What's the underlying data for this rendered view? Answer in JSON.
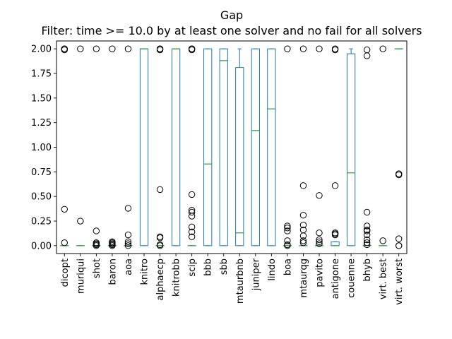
{
  "chart_data": {
    "type": "boxplot",
    "title": "Gap",
    "subtitle": "Filter: time >= 10.0 by at least one solver and no fail for all solvers",
    "xlabel": "",
    "ylabel": "",
    "ylim": [
      -0.08,
      2.08
    ],
    "yticks": [
      "0.00",
      "0.25",
      "0.50",
      "0.75",
      "1.00",
      "1.25",
      "1.50",
      "1.75",
      "2.00"
    ],
    "ytick_values": [
      0,
      0.25,
      0.5,
      0.75,
      1.0,
      1.25,
      1.5,
      1.75,
      2.0
    ],
    "grid": false,
    "colors": {
      "box": "#1f77b4",
      "median": "#2ca02c",
      "flier": "#000000",
      "axis": "#000000"
    },
    "categories": [
      "dicopt",
      "muriqui",
      "shot",
      "baron",
      "aoa",
      "knitro",
      "alphaecp",
      "knitrobb",
      "scip",
      "bbb",
      "sbb",
      "mtaurbnb",
      "juniper",
      "lindo",
      "boa",
      "mtaurqg",
      "pavito",
      "antigone",
      "couenne",
      "bhyb",
      "virt. best",
      "virt. worst"
    ],
    "boxes": [
      {
        "q1": 0,
        "median": 0,
        "q3": 0,
        "whislo": 0,
        "whishi": 0,
        "fliers": [
          0.03,
          0.37,
          1.99,
          2.0,
          2.0
        ]
      },
      {
        "q1": 0,
        "median": 0,
        "q3": 0,
        "whislo": 0,
        "whishi": 0,
        "fliers": [
          0.25,
          2.0
        ]
      },
      {
        "q1": 0,
        "median": 0,
        "q3": 0,
        "whislo": 0,
        "whishi": 0,
        "fliers": [
          0.0,
          0.01,
          0.02,
          0.03,
          0.15,
          2.0
        ]
      },
      {
        "q1": 0,
        "median": 0,
        "q3": 0,
        "whislo": 0,
        "whishi": 0,
        "fliers": [
          0.0,
          0.01,
          0.02,
          0.03,
          0.04,
          2.0
        ]
      },
      {
        "q1": 0,
        "median": 0,
        "q3": 0,
        "whislo": 0,
        "whishi": 0,
        "fliers": [
          0.0,
          0.02,
          0.04,
          0.11,
          0.38,
          2.0
        ]
      },
      {
        "q1": 0,
        "median": 2.0,
        "q3": 2.0,
        "whislo": 0,
        "whishi": 2.0,
        "fliers": []
      },
      {
        "q1": 0,
        "median": 0,
        "q3": 0,
        "whislo": 0,
        "whishi": 0,
        "fliers": [
          0.0,
          0.01,
          0.08,
          0.09,
          0.57,
          1.99,
          2.0,
          2.0
        ]
      },
      {
        "q1": 0,
        "median": 2.0,
        "q3": 2.0,
        "whislo": 0,
        "whishi": 2.0,
        "fliers": []
      },
      {
        "q1": 0,
        "median": 0,
        "q3": 0,
        "whislo": 0,
        "whishi": 0,
        "fliers": [
          0.09,
          0.14,
          0.19,
          0.3,
          0.34,
          0.36,
          0.52,
          1.99,
          2.0,
          2.0
        ]
      },
      {
        "q1": 0,
        "median": 0.83,
        "q3": 2.0,
        "whislo": 0,
        "whishi": 2.0,
        "fliers": []
      },
      {
        "q1": 0,
        "median": 1.88,
        "q3": 2.0,
        "whislo": 0,
        "whishi": 2.0,
        "fliers": []
      },
      {
        "q1": 0,
        "median": 0.13,
        "q3": 1.81,
        "whislo": 0,
        "whishi": 2.0,
        "fliers": []
      },
      {
        "q1": 0,
        "median": 1.17,
        "q3": 2.0,
        "whislo": 0,
        "whishi": 2.0,
        "fliers": []
      },
      {
        "q1": 0,
        "median": 1.39,
        "q3": 2.0,
        "whislo": 0,
        "whishi": 2.0,
        "fliers": []
      },
      {
        "q1": 0,
        "median": 0,
        "q3": 0,
        "whislo": 0,
        "whishi": 0,
        "fliers": [
          0.0,
          0.01,
          0.05,
          0.15,
          0.18,
          0.2,
          2.0
        ]
      },
      {
        "q1": 0,
        "median": 0,
        "q3": 0,
        "whislo": 0,
        "whishi": 0,
        "fliers": [
          0.03,
          0.05,
          0.1,
          0.16,
          0.21,
          0.31,
          0.61,
          2.0
        ]
      },
      {
        "q1": 0,
        "median": 0,
        "q3": 0,
        "whislo": 0,
        "whishi": 0,
        "fliers": [
          0.02,
          0.04,
          0.06,
          0.13,
          0.51,
          2.0
        ]
      },
      {
        "q1": 0,
        "median": 0,
        "q3": 0.04,
        "whislo": 0,
        "whishi": 0.04,
        "fliers": [
          0.11,
          0.12,
          0.13,
          0.61,
          1.99,
          2.0
        ]
      },
      {
        "q1": 0,
        "median": 0.74,
        "q3": 1.95,
        "whislo": 0,
        "whishi": 2.0,
        "fliers": []
      },
      {
        "q1": 0,
        "median": 0,
        "q3": 0,
        "whislo": 0,
        "whishi": 0,
        "fliers": [
          0.01,
          0.03,
          0.06,
          0.11,
          0.15,
          0.16,
          0.2,
          0.34,
          1.93,
          1.99
        ]
      },
      {
        "q1": 0,
        "median": 0,
        "q3": 0,
        "whislo": 0,
        "whishi": 0,
        "fliers": [
          0.05,
          2.0
        ]
      },
      {
        "q1": 2.0,
        "median": 2.0,
        "q3": 2.0,
        "whislo": 2.0,
        "whishi": 2.0,
        "fliers": [
          0.0,
          0.0,
          0.07,
          0.72,
          0.73
        ]
      }
    ]
  }
}
